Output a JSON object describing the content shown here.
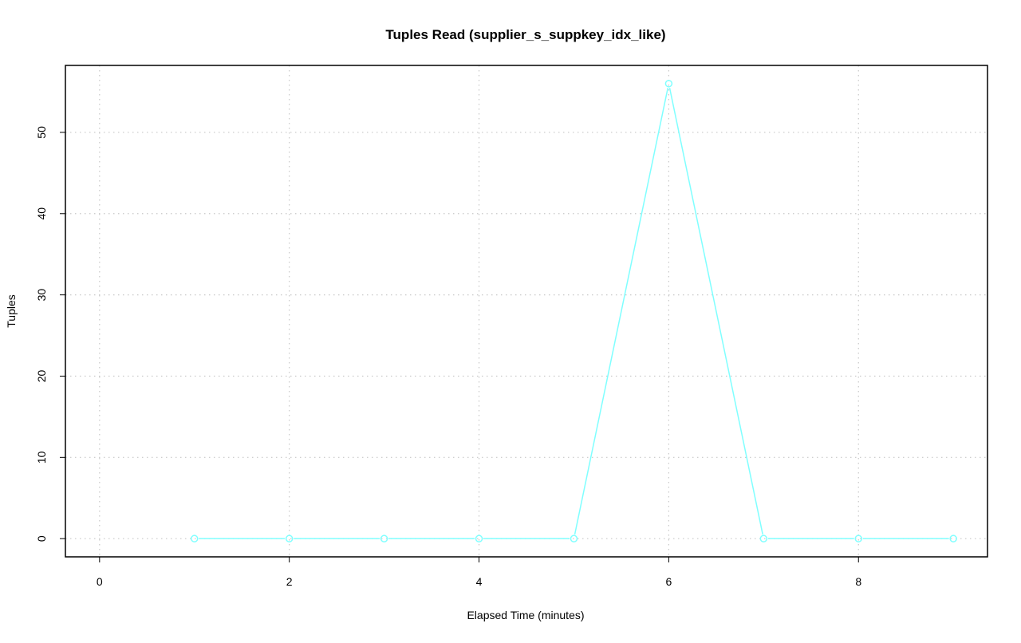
{
  "chart_data": {
    "type": "line",
    "title": "Tuples Read (supplier_s_suppkey_idx_like)",
    "xlabel": "Elapsed Time (minutes)",
    "ylabel": "Tuples",
    "x": [
      1,
      2,
      3,
      4,
      5,
      6,
      7,
      8,
      9
    ],
    "series": [
      {
        "values": [
          0,
          0,
          0,
          0,
          0,
          56,
          0,
          0,
          0
        ],
        "color": "#80FFFF"
      }
    ],
    "xlim": [
      -0.36,
      9.36
    ],
    "ylim": [
      -2.24,
      58.24
    ],
    "xticks": [
      0,
      2,
      4,
      6,
      8
    ],
    "yticks": [
      0,
      10,
      20,
      30,
      40,
      50
    ],
    "grid": true,
    "markers": "open-circle"
  }
}
